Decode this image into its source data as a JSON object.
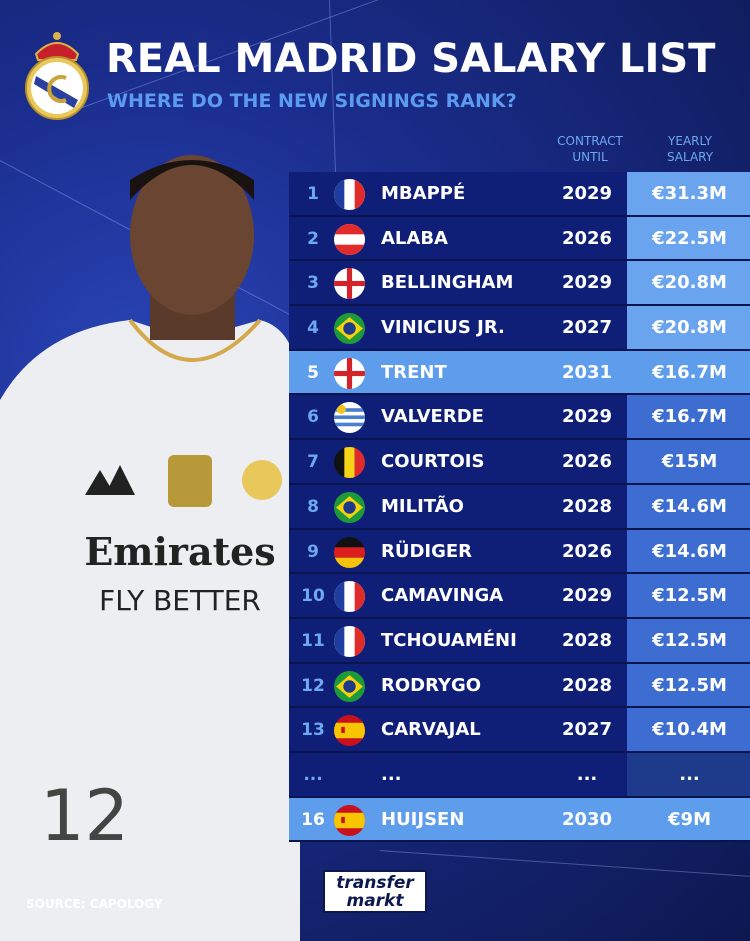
{
  "header": {
    "title": "REAL MADRID SALARY LIST",
    "subtitle": "WHERE DO THE NEW SIGNINGS RANK?",
    "logo": "real-madrid-crest"
  },
  "columns": {
    "contract": "CONTRACT\nUNTIL",
    "salary": "YEARLY\nSALARY"
  },
  "colors": {
    "row": "#0f1f78",
    "highlight": "#5e9deb",
    "salary_top": "#6aa4ee",
    "salary": "#3d6dd0",
    "subtitle": "#5b9bf0"
  },
  "rows": [
    {
      "rank": "1",
      "flag": "france",
      "name": "MBAPPÉ",
      "contract": "2029",
      "salary": "€31.3M",
      "style": "top"
    },
    {
      "rank": "2",
      "flag": "austria",
      "name": "ALABA",
      "contract": "2026",
      "salary": "€22.5M",
      "style": "top"
    },
    {
      "rank": "3",
      "flag": "england",
      "name": "BELLINGHAM",
      "contract": "2029",
      "salary": "€20.8M",
      "style": "top"
    },
    {
      "rank": "4",
      "flag": "brazil",
      "name": "VINICIUS JR.",
      "contract": "2027",
      "salary": "€20.8M",
      "style": "top"
    },
    {
      "rank": "5",
      "flag": "england",
      "name": "TRENT",
      "contract": "2031",
      "salary": "€16.7M",
      "style": "hl"
    },
    {
      "rank": "6",
      "flag": "uruguay",
      "name": "VALVERDE",
      "contract": "2029",
      "salary": "€16.7M",
      "style": ""
    },
    {
      "rank": "7",
      "flag": "belgium",
      "name": "COURTOIS",
      "contract": "2026",
      "salary": "€15M",
      "style": ""
    },
    {
      "rank": "8",
      "flag": "brazil",
      "name": "MILITÃO",
      "contract": "2028",
      "salary": "€14.6M",
      "style": ""
    },
    {
      "rank": "9",
      "flag": "germany",
      "name": "RÜDIGER",
      "contract": "2026",
      "salary": "€14.6M",
      "style": ""
    },
    {
      "rank": "10",
      "flag": "france",
      "name": "CAMAVINGA",
      "contract": "2029",
      "salary": "€12.5M",
      "style": ""
    },
    {
      "rank": "11",
      "flag": "france",
      "name": "TCHOUAMÉNI",
      "contract": "2028",
      "salary": "€12.5M",
      "style": ""
    },
    {
      "rank": "12",
      "flag": "brazil",
      "name": "RODRYGO",
      "contract": "2028",
      "salary": "€12.5M",
      "style": ""
    },
    {
      "rank": "13",
      "flag": "spain",
      "name": "CARVAJAL",
      "contract": "2027",
      "salary": "€10.4M",
      "style": ""
    },
    {
      "rank": "...",
      "flag": "",
      "name": "...",
      "contract": "...",
      "salary": "...",
      "style": "dots"
    },
    {
      "rank": "16",
      "flag": "spain",
      "name": "HUIJSEN",
      "contract": "2030",
      "salary": "€9M",
      "style": "hl"
    }
  ],
  "footer": {
    "source": "SOURCE: CAPOLOGY",
    "brand_line1": "transfer",
    "brand_line2": "markt"
  },
  "player": {
    "shirt_sponsor_1": "Emirates",
    "shirt_sponsor_2": "FLY BETTER",
    "shorts_number": "12"
  }
}
